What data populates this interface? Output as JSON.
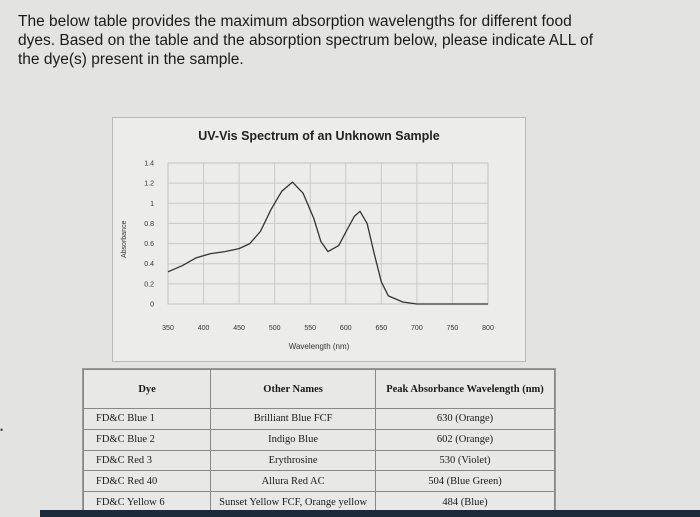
{
  "question": {
    "lines": [
      "The below table provides the maximum absorption wavelengths for different food",
      "dyes. Based on the table and the absorption spectrum below, please indicate ALL of",
      "the dye(s) present in the sample."
    ]
  },
  "chart_data": {
    "type": "line",
    "title": "UV-Vis Spectrum of an Unknown Sample",
    "xlabel": "Wavelength (nm)",
    "ylabel": "Absorbance",
    "x_ticks": [
      "350",
      "400",
      "450",
      "500",
      "550",
      "600",
      "650",
      "700",
      "750",
      "800"
    ],
    "y_ticks": [
      "0",
      "0.2",
      "0.4",
      "0.6",
      "0.8",
      "1",
      "1.2",
      "1.4"
    ],
    "xlim": [
      350,
      800
    ],
    "ylim": [
      0,
      1.4
    ],
    "grid": true,
    "series": [
      {
        "color": "#333333",
        "x": [
          350,
          370,
          390,
          410,
          430,
          450,
          465,
          480,
          495,
          510,
          525,
          540,
          555,
          565,
          575,
          590,
          602,
          612,
          620,
          630,
          640,
          650,
          660,
          680,
          700,
          750,
          800
        ],
        "y": [
          0.32,
          0.38,
          0.46,
          0.5,
          0.52,
          0.55,
          0.6,
          0.72,
          0.94,
          1.12,
          1.21,
          1.1,
          0.85,
          0.62,
          0.52,
          0.58,
          0.74,
          0.87,
          0.92,
          0.8,
          0.5,
          0.22,
          0.08,
          0.02,
          0.0,
          0.0,
          0.0
        ]
      }
    ]
  },
  "table": {
    "headers": [
      "Dye",
      "Other Names",
      "Peak Absorbance Wavelength (nm)"
    ],
    "rows": [
      [
        "FD&C Blue 1",
        "Brilliant Blue FCF",
        "630 (Orange)"
      ],
      [
        "FD&C Blue 2",
        "Indigo Blue",
        "602 (Orange)"
      ],
      [
        "FD&C Red 3",
        "Erythrosine",
        "530 (Violet)"
      ],
      [
        "FD&C Red 40",
        "Allura Red AC",
        "504 (Blue Green)"
      ],
      [
        "FD&C Yellow 6",
        "Sunset Yellow FCF, Orange yellow",
        "484 (Blue)"
      ]
    ]
  },
  "side_marker": "•"
}
